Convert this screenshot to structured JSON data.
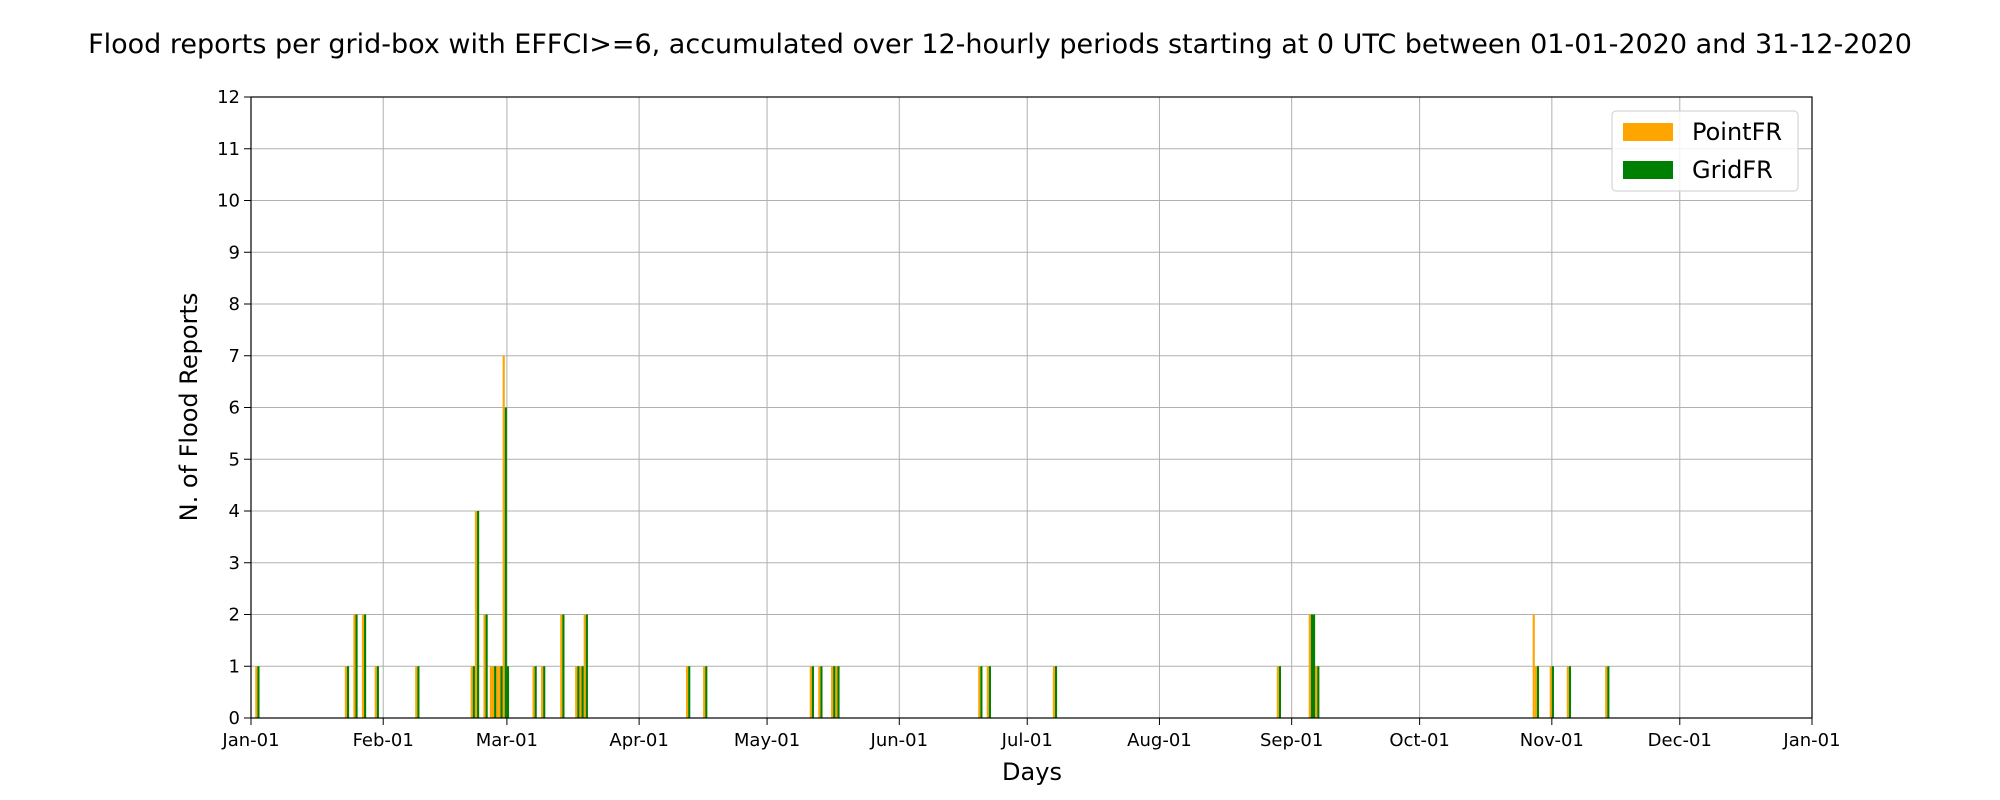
{
  "chart_data": {
    "type": "bar",
    "title": "Flood reports per grid-box with EFFCI>=6, accumulated over 12-hourly periods starting at 0 UTC between 01-01-2020 and 31-12-2020",
    "xlabel": "Days",
    "ylabel": "N. of Flood Reports",
    "xlim": [
      "2020-01-01",
      "2021-01-01"
    ],
    "ylim": [
      0,
      12
    ],
    "y_ticks": [
      0,
      1,
      2,
      3,
      4,
      5,
      6,
      7,
      8,
      9,
      10,
      11,
      12
    ],
    "x_ticks": [
      {
        "date": "2020-01-01",
        "label": "Jan-01"
      },
      {
        "date": "2020-02-01",
        "label": "Feb-01"
      },
      {
        "date": "2020-03-01",
        "label": "Mar-01"
      },
      {
        "date": "2020-04-01",
        "label": "Apr-01"
      },
      {
        "date": "2020-05-01",
        "label": "May-01"
      },
      {
        "date": "2020-06-01",
        "label": "Jun-01"
      },
      {
        "date": "2020-07-01",
        "label": "Jul-01"
      },
      {
        "date": "2020-08-01",
        "label": "Aug-01"
      },
      {
        "date": "2020-09-01",
        "label": "Sep-01"
      },
      {
        "date": "2020-10-01",
        "label": "Oct-01"
      },
      {
        "date": "2020-11-01",
        "label": "Nov-01"
      },
      {
        "date": "2020-12-01",
        "label": "Dec-01"
      },
      {
        "date": "2021-01-01",
        "label": "Jan-01"
      }
    ],
    "grid": true,
    "legend": {
      "placement": "top-right"
    },
    "series": [
      {
        "name": "PointFR",
        "color": "#FFA500",
        "points": [
          {
            "x": "2020-01-02 00:00",
            "y": 1
          },
          {
            "x": "2020-01-23 00:00",
            "y": 1
          },
          {
            "x": "2020-01-25 00:00",
            "y": 2
          },
          {
            "x": "2020-01-27 00:00",
            "y": 2
          },
          {
            "x": "2020-01-30 00:00",
            "y": 1
          },
          {
            "x": "2020-02-08 12:00",
            "y": 1
          },
          {
            "x": "2020-02-21 12:00",
            "y": 1
          },
          {
            "x": "2020-02-22 12:00",
            "y": 4
          },
          {
            "x": "2020-02-24 12:00",
            "y": 2
          },
          {
            "x": "2020-02-26 00:00",
            "y": 1
          },
          {
            "x": "2020-02-26 12:00",
            "y": 1
          },
          {
            "x": "2020-02-27 12:00",
            "y": 1
          },
          {
            "x": "2020-02-28 00:00",
            "y": 1
          },
          {
            "x": "2020-02-29 00:00",
            "y": 7
          },
          {
            "x": "2020-02-29 12:00",
            "y": 1
          },
          {
            "x": "2020-03-07 00:00",
            "y": 1
          },
          {
            "x": "2020-03-09 00:00",
            "y": 1
          },
          {
            "x": "2020-03-13 12:00",
            "y": 2
          },
          {
            "x": "2020-03-17 00:00",
            "y": 1
          },
          {
            "x": "2020-03-18 00:00",
            "y": 1
          },
          {
            "x": "2020-03-19 00:00",
            "y": 2
          },
          {
            "x": "2020-04-12 00:00",
            "y": 1
          },
          {
            "x": "2020-04-16 00:00",
            "y": 1
          },
          {
            "x": "2020-05-11 00:00",
            "y": 1
          },
          {
            "x": "2020-05-13 00:00",
            "y": 1
          },
          {
            "x": "2020-05-16 00:00",
            "y": 1
          },
          {
            "x": "2020-05-17 00:00",
            "y": 1
          },
          {
            "x": "2020-06-19 12:00",
            "y": 1
          },
          {
            "x": "2020-06-21 12:00",
            "y": 1
          },
          {
            "x": "2020-07-07 00:00",
            "y": 1
          },
          {
            "x": "2020-08-28 12:00",
            "y": 1
          },
          {
            "x": "2020-09-05 00:00",
            "y": 2
          },
          {
            "x": "2020-09-05 12:00",
            "y": 2
          },
          {
            "x": "2020-09-06 12:00",
            "y": 1
          },
          {
            "x": "2020-10-27 12:00",
            "y": 2
          },
          {
            "x": "2020-10-28 00:00",
            "y": 1
          },
          {
            "x": "2020-10-31 12:00",
            "y": 1
          },
          {
            "x": "2020-11-04 12:00",
            "y": 1
          },
          {
            "x": "2020-11-13 12:00",
            "y": 1
          }
        ]
      },
      {
        "name": "GridFR",
        "color": "#008000",
        "points": [
          {
            "x": "2020-01-02 12:00",
            "y": 1
          },
          {
            "x": "2020-01-23 12:00",
            "y": 1
          },
          {
            "x": "2020-01-25 12:00",
            "y": 2
          },
          {
            "x": "2020-01-27 12:00",
            "y": 2
          },
          {
            "x": "2020-01-30 12:00",
            "y": 1
          },
          {
            "x": "2020-02-09 00:00",
            "y": 1
          },
          {
            "x": "2020-02-22 00:00",
            "y": 1
          },
          {
            "x": "2020-02-23 00:00",
            "y": 4
          },
          {
            "x": "2020-02-25 00:00",
            "y": 2
          },
          {
            "x": "2020-02-27 00:00",
            "y": 1
          },
          {
            "x": "2020-02-28 12:00",
            "y": 1
          },
          {
            "x": "2020-02-29 12:00",
            "y": 6
          },
          {
            "x": "2020-03-01 00:00",
            "y": 1
          },
          {
            "x": "2020-03-07 12:00",
            "y": 1
          },
          {
            "x": "2020-03-09 12:00",
            "y": 1
          },
          {
            "x": "2020-03-14 00:00",
            "y": 2
          },
          {
            "x": "2020-03-17 12:00",
            "y": 1
          },
          {
            "x": "2020-03-18 12:00",
            "y": 1
          },
          {
            "x": "2020-03-19 12:00",
            "y": 2
          },
          {
            "x": "2020-04-12 12:00",
            "y": 1
          },
          {
            "x": "2020-04-16 12:00",
            "y": 1
          },
          {
            "x": "2020-05-11 12:00",
            "y": 1
          },
          {
            "x": "2020-05-13 12:00",
            "y": 1
          },
          {
            "x": "2020-05-16 12:00",
            "y": 1
          },
          {
            "x": "2020-05-17 12:00",
            "y": 1
          },
          {
            "x": "2020-06-20 00:00",
            "y": 1
          },
          {
            "x": "2020-06-22 00:00",
            "y": 1
          },
          {
            "x": "2020-07-07 12:00",
            "y": 1
          },
          {
            "x": "2020-08-29 00:00",
            "y": 1
          },
          {
            "x": "2020-09-05 12:00",
            "y": 2
          },
          {
            "x": "2020-09-06 00:00",
            "y": 2
          },
          {
            "x": "2020-09-07 00:00",
            "y": 1
          },
          {
            "x": "2020-10-28 12:00",
            "y": 1
          },
          {
            "x": "2020-11-01 00:00",
            "y": 1
          },
          {
            "x": "2020-11-05 00:00",
            "y": 1
          },
          {
            "x": "2020-11-14 00:00",
            "y": 1
          }
        ]
      }
    ]
  }
}
